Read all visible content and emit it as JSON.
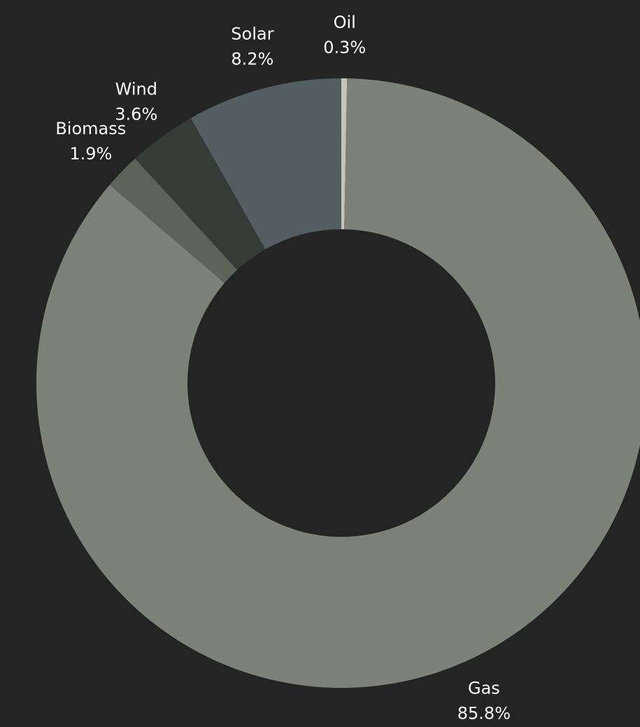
{
  "chart_data": {
    "type": "pie",
    "variant": "donut",
    "background_color": "#242424",
    "label_color": "#ffffff",
    "slices": [
      {
        "label": "Oil",
        "value_label": "0.3%",
        "value": 0.3,
        "color": "#c6c5b9"
      },
      {
        "label": "Gas",
        "value_label": "85.8%",
        "value": 85.8,
        "color": "#7d8279"
      },
      {
        "label": "Biomass",
        "value_label": "1.9%",
        "value": 1.9,
        "color": "#5c6459"
      },
      {
        "label": "Wind",
        "value_label": "3.6%",
        "value": 3.6,
        "color": "#333c37"
      },
      {
        "label": "Solar",
        "value_label": "8.2%",
        "value": 8.2,
        "color": "#525e60"
      }
    ]
  }
}
